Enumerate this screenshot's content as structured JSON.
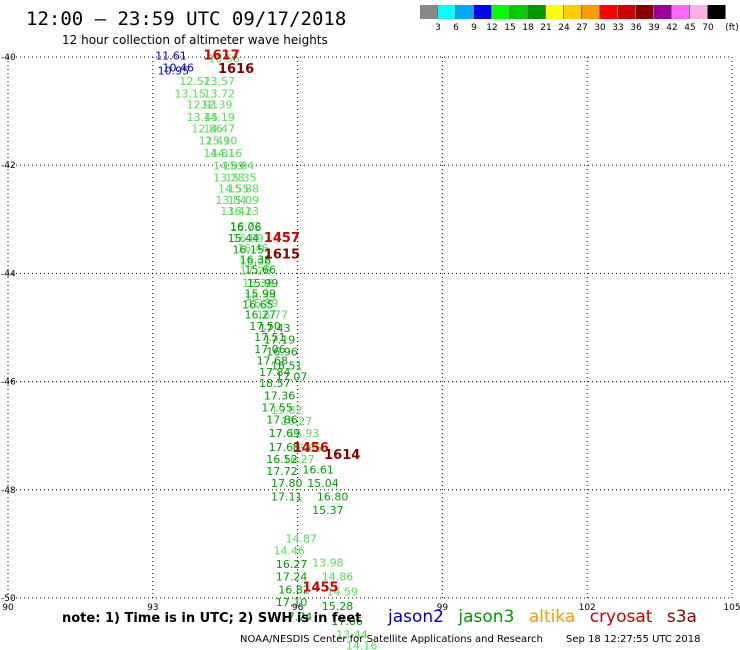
{
  "header": {
    "title": "12:00 – 23:59 UTC 09/17/2018",
    "subtitle": "12 hour collection of altimeter wave heights"
  },
  "legend": {
    "unit": "(ft)",
    "colors": [
      "#888888",
      "#00ffff",
      "#00aaff",
      "#0000ff",
      "#00ff00",
      "#00cc00",
      "#009900",
      "#ffff00",
      "#ffcc00",
      "#ff9900",
      "#ff0000",
      "#cc0000",
      "#880000",
      "#990099",
      "#ff66ff",
      "#ffb0e0",
      "#000000"
    ],
    "labels": [
      "3",
      "6",
      "9",
      "12",
      "15",
      "18",
      "21",
      "24",
      "27",
      "30",
      "33",
      "36",
      "39",
      "42",
      "45",
      "70"
    ]
  },
  "axes": {
    "lon_ticks": [
      "90",
      "93",
      "96",
      "99",
      "102",
      "105"
    ],
    "lon_values": [
      90,
      93,
      96,
      99,
      102,
      105
    ],
    "lat_ticks": [
      "-40",
      "-42",
      "-44",
      "-46",
      "-48",
      "-50"
    ],
    "lat_values": [
      -40,
      -42,
      -44,
      -46,
      -48,
      -50
    ]
  },
  "colors": {
    "jason2": "#0000cc",
    "jason3": "#009900",
    "jason3_light": "#55dd55",
    "altika": "#ff9900",
    "cryosat": "#cc0000",
    "s3a": "#880000"
  },
  "tracks": [
    {
      "sat": "jason2",
      "points": [
        [
          93.05,
          -40.05,
          "11.61"
        ],
        [
          93.2,
          -40.27,
          "10.46"
        ],
        [
          93.1,
          -40.32,
          "10.95"
        ]
      ]
    },
    {
      "sat": "jason3_light",
      "points": [
        [
          94.15,
          -40.1,
          "10.56"
        ],
        [
          93.55,
          -40.52,
          "12.52"
        ],
        [
          94.05,
          -40.52,
          "13.57"
        ],
        [
          93.45,
          -40.75,
          "13.15"
        ],
        [
          94.05,
          -40.75,
          "13.72"
        ],
        [
          93.7,
          -40.95,
          "12.91"
        ],
        [
          94.0,
          -40.95,
          "12.39"
        ],
        [
          93.7,
          -41.18,
          "13.45"
        ],
        [
          94.05,
          -41.18,
          "14.19"
        ],
        [
          93.8,
          -41.4,
          "12.86"
        ],
        [
          94.05,
          -41.4,
          "14.47"
        ],
        [
          93.95,
          -41.62,
          "12.49"
        ],
        [
          94.1,
          -41.62,
          "15.10"
        ],
        [
          94.05,
          -41.85,
          "14.81"
        ],
        [
          94.2,
          -41.85,
          "14.16"
        ],
        [
          94.25,
          -42.08,
          "14.89"
        ],
        [
          94.45,
          -42.08,
          "15.04"
        ],
        [
          94.25,
          -42.3,
          "13.28"
        ],
        [
          94.5,
          -42.3,
          "15.35"
        ],
        [
          94.35,
          -42.5,
          "14.55"
        ],
        [
          94.55,
          -42.5,
          "15.88"
        ],
        [
          94.3,
          -42.72,
          "13.84"
        ],
        [
          94.55,
          -42.72,
          "15.09"
        ],
        [
          94.4,
          -42.92,
          "13.41"
        ],
        [
          94.55,
          -42.92,
          "16.23"
        ],
        [
          94.6,
          -43.2,
          "16.72"
        ],
        [
          94.65,
          -43.42,
          "16.89"
        ],
        [
          94.75,
          -43.6,
          "16.46"
        ],
        [
          94.8,
          -43.85,
          "16.96"
        ],
        [
          94.8,
          -44.02,
          "17.26"
        ],
        [
          94.85,
          -44.25,
          "16.38"
        ],
        [
          94.9,
          -44.5,
          "16.39"
        ],
        [
          94.95,
          -44.62,
          "16.89"
        ],
        [
          95.15,
          -44.83,
          "16.77"
        ],
        [
          95.45,
          -46.6,
          "15.82"
        ],
        [
          95.65,
          -46.8,
          "16.27"
        ],
        [
          95.8,
          -47.02,
          "15.93"
        ],
        [
          95.85,
          -47.3,
          "16.65"
        ],
        [
          95.7,
          -47.5,
          "16.27"
        ],
        [
          95.75,
          -48.97,
          "14.87"
        ],
        [
          95.5,
          -49.2,
          "14.46"
        ],
        [
          96.3,
          -49.42,
          "13.98"
        ],
        [
          96.5,
          -49.68,
          "14.86"
        ],
        [
          96.6,
          -49.95,
          "14.59"
        ],
        [
          96.8,
          -50.75,
          "13.44"
        ],
        [
          97.0,
          -50.95,
          "14.16"
        ]
      ]
    },
    {
      "sat": "jason3",
      "points": [
        [
          94.6,
          -43.22,
          "16.06"
        ],
        [
          94.55,
          -43.42,
          "15.44"
        ],
        [
          94.65,
          -43.63,
          "16.15"
        ],
        [
          94.8,
          -43.82,
          "16.38"
        ],
        [
          94.9,
          -44.0,
          "15.66"
        ],
        [
          94.95,
          -44.25,
          "15.99"
        ],
        [
          94.9,
          -44.45,
          "15.99"
        ],
        [
          94.85,
          -44.65,
          "16.65"
        ],
        [
          94.9,
          -44.83,
          "16.27"
        ],
        [
          95.0,
          -45.05,
          "17.50"
        ],
        [
          95.2,
          -45.08,
          "17.43"
        ],
        [
          95.1,
          -45.25,
          "17.51"
        ],
        [
          95.3,
          -45.3,
          "17.19"
        ],
        [
          95.1,
          -45.47,
          "17.06"
        ],
        [
          95.35,
          -45.52,
          "16.96"
        ],
        [
          95.15,
          -45.68,
          "17.68"
        ],
        [
          95.45,
          -45.78,
          "16.51"
        ],
        [
          95.2,
          -45.9,
          "17.84"
        ],
        [
          95.55,
          -45.98,
          "17.07"
        ],
        [
          95.2,
          -46.1,
          "18.57"
        ],
        [
          95.3,
          -46.33,
          "17.36"
        ],
        [
          95.25,
          -46.55,
          "17.55"
        ],
        [
          95.35,
          -46.77,
          "17.86"
        ],
        [
          95.4,
          -47.02,
          "17.69"
        ],
        [
          95.4,
          -47.28,
          "17.68"
        ],
        [
          95.35,
          -47.5,
          "16.52"
        ],
        [
          95.35,
          -47.73,
          "17.72"
        ],
        [
          95.45,
          -47.95,
          "17.80"
        ],
        [
          96.1,
          -47.7,
          "16.61"
        ],
        [
          96.2,
          -47.95,
          "15.04"
        ],
        [
          96.4,
          -48.2,
          "16.80"
        ],
        [
          96.3,
          -48.45,
          "15.37"
        ],
        [
          95.45,
          -48.2,
          "17.11"
        ],
        [
          95.55,
          -49.45,
          "16.27"
        ],
        [
          95.55,
          -49.68,
          "17.24"
        ],
        [
          95.6,
          -49.92,
          "16.82"
        ],
        [
          95.55,
          -50.15,
          "17.10"
        ],
        [
          95.65,
          -50.42,
          "17.74"
        ],
        [
          96.5,
          -50.22,
          "15.28"
        ],
        [
          96.7,
          -50.5,
          "17.06"
        ]
      ]
    }
  ],
  "time_labels": [
    {
      "sat": "cryosat",
      "lon": 94.05,
      "lat": -40.05,
      "text": "1617"
    },
    {
      "sat": "s3a",
      "lon": 94.35,
      "lat": -40.3,
      "text": "1616"
    },
    {
      "sat": "cryosat",
      "lon": 95.3,
      "lat": -43.42,
      "text": "1457"
    },
    {
      "sat": "s3a",
      "lon": 95.3,
      "lat": -43.72,
      "text": "1615"
    },
    {
      "sat": "cryosat",
      "lon": 95.9,
      "lat": -47.3,
      "text": "1456"
    },
    {
      "sat": "s3a",
      "lon": 96.55,
      "lat": -47.43,
      "text": "1614"
    },
    {
      "sat": "cryosat",
      "lon": 96.1,
      "lat": -49.88,
      "text": "1455"
    }
  ],
  "note": "note: 1) Time is in UTC; 2) SWH is in feet",
  "satellites": {
    "jason2": "jason2",
    "jason3": "jason3",
    "altika": "altika",
    "cryosat": "cryosat",
    "s3a": "s3a"
  },
  "footer": {
    "credit": "NOAA/NESDIS Center for Satellite Applications and Research",
    "timestamp": "Sep 18 12:27:55 UTC 2018"
  }
}
